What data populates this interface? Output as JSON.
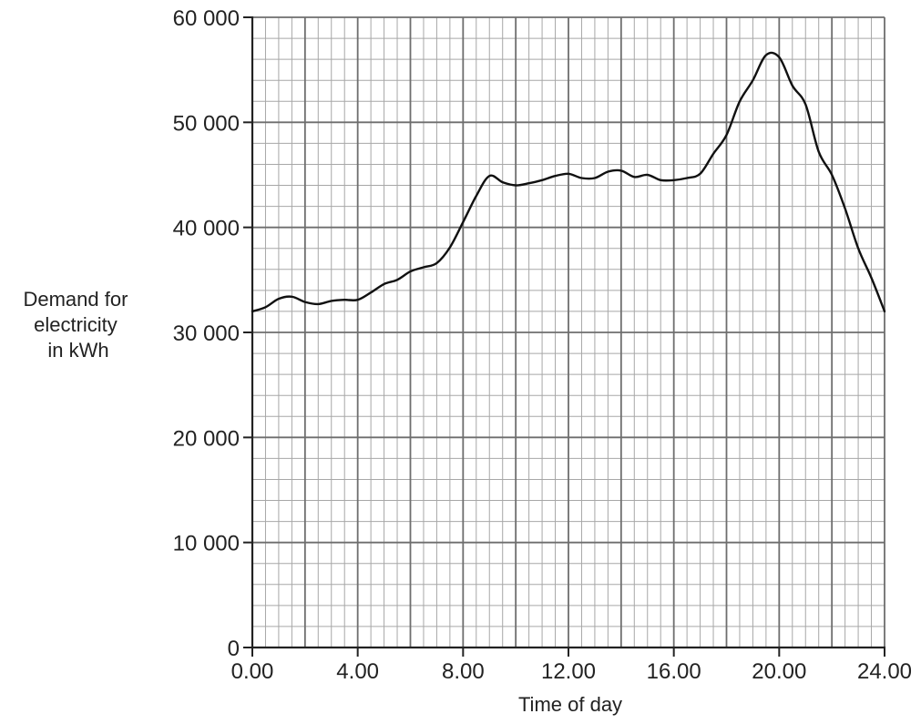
{
  "chart_data": {
    "type": "line",
    "title": "",
    "xlabel": "Time of day",
    "ylabel_lines": [
      "Demand for",
      "electricity",
      "in kWh"
    ],
    "xlim": [
      0,
      24
    ],
    "ylim": [
      0,
      60000
    ],
    "grid": true,
    "x_ticks": [
      {
        "value": 0,
        "label": "0.00"
      },
      {
        "value": 4,
        "label": "4.00"
      },
      {
        "value": 8,
        "label": "8.00"
      },
      {
        "value": 12,
        "label": "12.00"
      },
      {
        "value": 16,
        "label": "16.00"
      },
      {
        "value": 20,
        "label": "20.00"
      },
      {
        "value": 24,
        "label": "24.00"
      }
    ],
    "y_ticks": [
      {
        "value": 0,
        "label": "0"
      },
      {
        "value": 10000,
        "label": "10 000"
      },
      {
        "value": 20000,
        "label": "20 000"
      },
      {
        "value": 30000,
        "label": "30 000"
      },
      {
        "value": 40000,
        "label": "40 000"
      },
      {
        "value": 50000,
        "label": "50 000"
      },
      {
        "value": 60000,
        "label": "60 000"
      }
    ],
    "series": [
      {
        "color": "#111111",
        "points": [
          [
            0.0,
            32000
          ],
          [
            0.5,
            32400
          ],
          [
            1.0,
            33200
          ],
          [
            1.5,
            33400
          ],
          [
            2.0,
            32900
          ],
          [
            2.5,
            32700
          ],
          [
            3.0,
            33000
          ],
          [
            3.5,
            33100
          ],
          [
            4.0,
            33100
          ],
          [
            4.5,
            33800
          ],
          [
            5.0,
            34600
          ],
          [
            5.5,
            35000
          ],
          [
            6.0,
            35800
          ],
          [
            6.5,
            36200
          ],
          [
            7.0,
            36600
          ],
          [
            7.5,
            38100
          ],
          [
            8.0,
            40500
          ],
          [
            8.5,
            43000
          ],
          [
            9.0,
            44900
          ],
          [
            9.5,
            44300
          ],
          [
            10.0,
            44000
          ],
          [
            10.5,
            44200
          ],
          [
            11.0,
            44500
          ],
          [
            11.5,
            44900
          ],
          [
            12.0,
            45100
          ],
          [
            12.5,
            44700
          ],
          [
            13.0,
            44700
          ],
          [
            13.5,
            45300
          ],
          [
            14.0,
            45400
          ],
          [
            14.5,
            44800
          ],
          [
            15.0,
            45000
          ],
          [
            15.5,
            44500
          ],
          [
            16.0,
            44500
          ],
          [
            16.5,
            44700
          ],
          [
            17.0,
            45100
          ],
          [
            17.5,
            47000
          ],
          [
            18.0,
            48800
          ],
          [
            18.5,
            52000
          ],
          [
            19.0,
            54000
          ],
          [
            19.5,
            56400
          ],
          [
            20.0,
            56200
          ],
          [
            20.5,
            53500
          ],
          [
            21.0,
            51700
          ],
          [
            21.5,
            47200
          ],
          [
            22.0,
            45000
          ],
          [
            22.5,
            41800
          ],
          [
            23.0,
            38000
          ],
          [
            23.5,
            35200
          ],
          [
            24.0,
            32000
          ]
        ]
      }
    ]
  }
}
